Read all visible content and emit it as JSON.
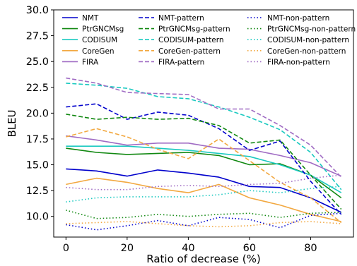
{
  "chart_data": {
    "type": "line",
    "xlabel": "Ratio of decrease (%)",
    "ylabel": "BLEU",
    "xlim": [
      -4,
      94
    ],
    "ylim": [
      8.0,
      30.0
    ],
    "xticks": [
      0,
      20,
      40,
      60,
      80
    ],
    "yticks": [
      10.0,
      12.5,
      15.0,
      17.5,
      20.0,
      22.5,
      25.0,
      27.5,
      30.0
    ],
    "xtick_labels": [
      "0",
      "20",
      "40",
      "60",
      "80"
    ],
    "ytick_labels": [
      "10.0",
      "12.5",
      "15.0",
      "17.5",
      "20.0",
      "22.5",
      "25.0",
      "27.5",
      "30.0"
    ],
    "grid": false,
    "legend_position": "top",
    "x": [
      0,
      10,
      20,
      30,
      40,
      50,
      60,
      70,
      80,
      90
    ],
    "series": [
      {
        "name": "NMT",
        "color": "#0000cc",
        "style": "solid",
        "values": [
          14.6,
          14.4,
          13.9,
          14.5,
          14.2,
          13.8,
          12.9,
          12.8,
          11.8,
          10.4
        ]
      },
      {
        "name": "PtrGNCMsg",
        "color": "#118811",
        "style": "solid",
        "values": [
          16.6,
          16.2,
          16.0,
          16.1,
          16.2,
          15.9,
          15.0,
          15.1,
          14.0,
          11.8
        ]
      },
      {
        "name": "CODISUM",
        "color": "#1ac9c0",
        "style": "solid",
        "values": [
          16.8,
          16.8,
          16.8,
          16.6,
          16.4,
          16.1,
          15.8,
          15.0,
          14.0,
          12.3
        ]
      },
      {
        "name": "CoreGen",
        "color": "#f2a840",
        "style": "solid",
        "values": [
          13.1,
          13.7,
          13.3,
          12.7,
          12.3,
          13.1,
          11.8,
          11.1,
          10.2,
          9.5
        ]
      },
      {
        "name": "FIRA",
        "color": "#a06cc4",
        "style": "solid",
        "values": [
          17.8,
          17.4,
          16.9,
          17.1,
          17.1,
          16.6,
          16.5,
          15.9,
          15.2,
          13.9
        ]
      },
      {
        "name": "NMT-pattern",
        "color": "#0000cc",
        "style": "dashed",
        "values": [
          20.6,
          20.9,
          19.4,
          20.1,
          19.8,
          18.5,
          16.4,
          17.3,
          13.4,
          10.2
        ]
      },
      {
        "name": "PtrGNCMsg-pattern",
        "color": "#118811",
        "style": "dashed",
        "values": [
          19.9,
          19.4,
          19.6,
          19.4,
          19.5,
          18.8,
          17.1,
          17.4,
          14.0,
          10.7
        ]
      },
      {
        "name": "CODISUM-pattern",
        "color": "#1ac9c0",
        "style": "dashed",
        "values": [
          22.9,
          22.7,
          22.4,
          21.6,
          21.4,
          20.6,
          19.6,
          18.4,
          16.2,
          12.6
        ]
      },
      {
        "name": "CoreGen-pattern",
        "color": "#f2a840",
        "style": "dashed",
        "values": [
          17.7,
          18.5,
          17.7,
          16.5,
          15.6,
          17.5,
          15.4,
          13.3,
          11.8,
          9.4
        ]
      },
      {
        "name": "FIRA-pattern",
        "color": "#a06cc4",
        "style": "dashed",
        "values": [
          23.4,
          22.9,
          22.0,
          21.9,
          21.8,
          20.4,
          20.4,
          18.8,
          16.9,
          13.8
        ]
      },
      {
        "name": "NMT-non-pattern",
        "color": "#0000cc",
        "style": "dotted",
        "values": [
          9.2,
          8.7,
          9.1,
          9.6,
          9.1,
          9.9,
          9.7,
          8.9,
          10.1,
          10.3
        ]
      },
      {
        "name": "PtrGNCMsg-non-pattern",
        "color": "#118811",
        "style": "dotted",
        "values": [
          10.6,
          9.8,
          9.9,
          10.2,
          10.0,
          10.2,
          10.3,
          9.9,
          10.3,
          10.4
        ]
      },
      {
        "name": "CODISUM-non-pattern",
        "color": "#1ac9c0",
        "style": "dotted",
        "values": [
          11.4,
          11.8,
          11.9,
          11.9,
          11.9,
          12.1,
          12.5,
          12.3,
          12.7,
          12.9
        ]
      },
      {
        "name": "CoreGen-non-pattern",
        "color": "#f2a840",
        "style": "dotted",
        "values": [
          9.3,
          9.4,
          9.5,
          9.3,
          9.1,
          9.0,
          9.1,
          9.4,
          9.5,
          9.3
        ]
      },
      {
        "name": "FIRA-non-pattern",
        "color": "#a06cc4",
        "style": "dotted",
        "values": [
          12.8,
          12.6,
          12.6,
          12.9,
          13.0,
          12.9,
          13.1,
          13.2,
          13.7,
          14.0
        ]
      }
    ]
  }
}
